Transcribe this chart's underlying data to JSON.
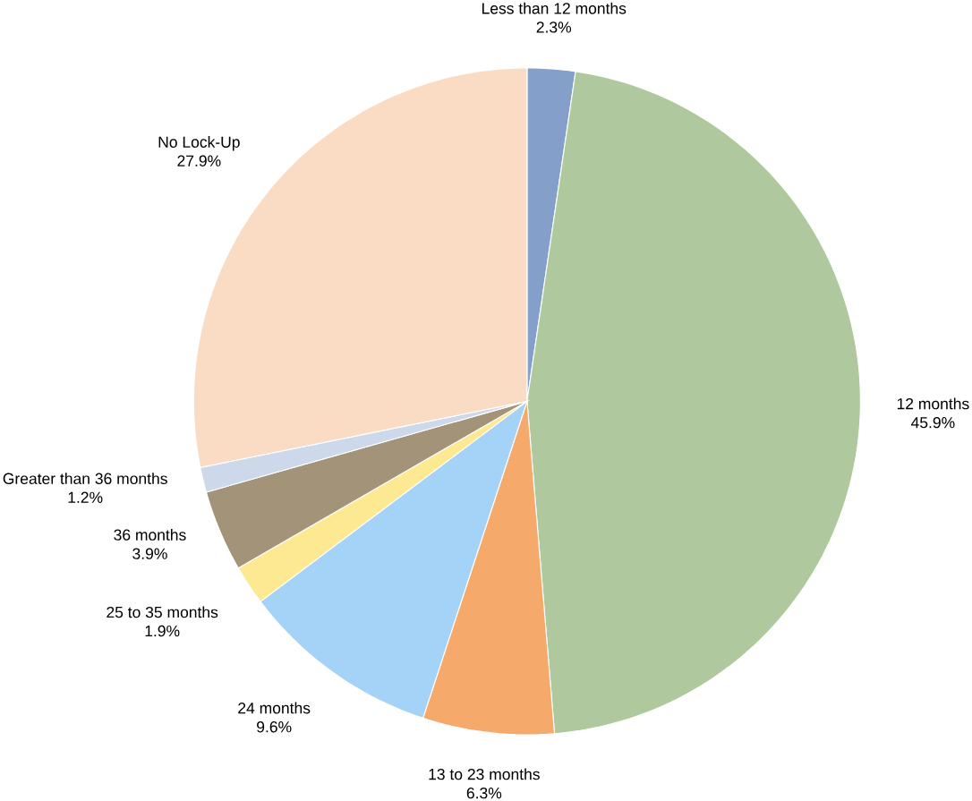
{
  "chart_data": {
    "type": "pie",
    "categories": [
      "Less than 12 months",
      "12 months",
      "13 to 23 months",
      "24 months",
      "25 to 35 months",
      "36 months",
      "Greater than 36 months",
      "No Lock-Up"
    ],
    "values": [
      2.3,
      45.9,
      6.3,
      9.6,
      1.9,
      3.9,
      1.2,
      27.9
    ],
    "value_labels": [
      "2.3%",
      "45.9%",
      "6.3%",
      "9.6%",
      "1.9%",
      "3.9%",
      "1.2%",
      "27.9%"
    ],
    "colors": [
      "#849fca",
      "#b0c89d",
      "#f5a96a",
      "#a5d3f7",
      "#fde992",
      "#a39479",
      "#cdd9eb",
      "#fadcc4"
    ]
  }
}
